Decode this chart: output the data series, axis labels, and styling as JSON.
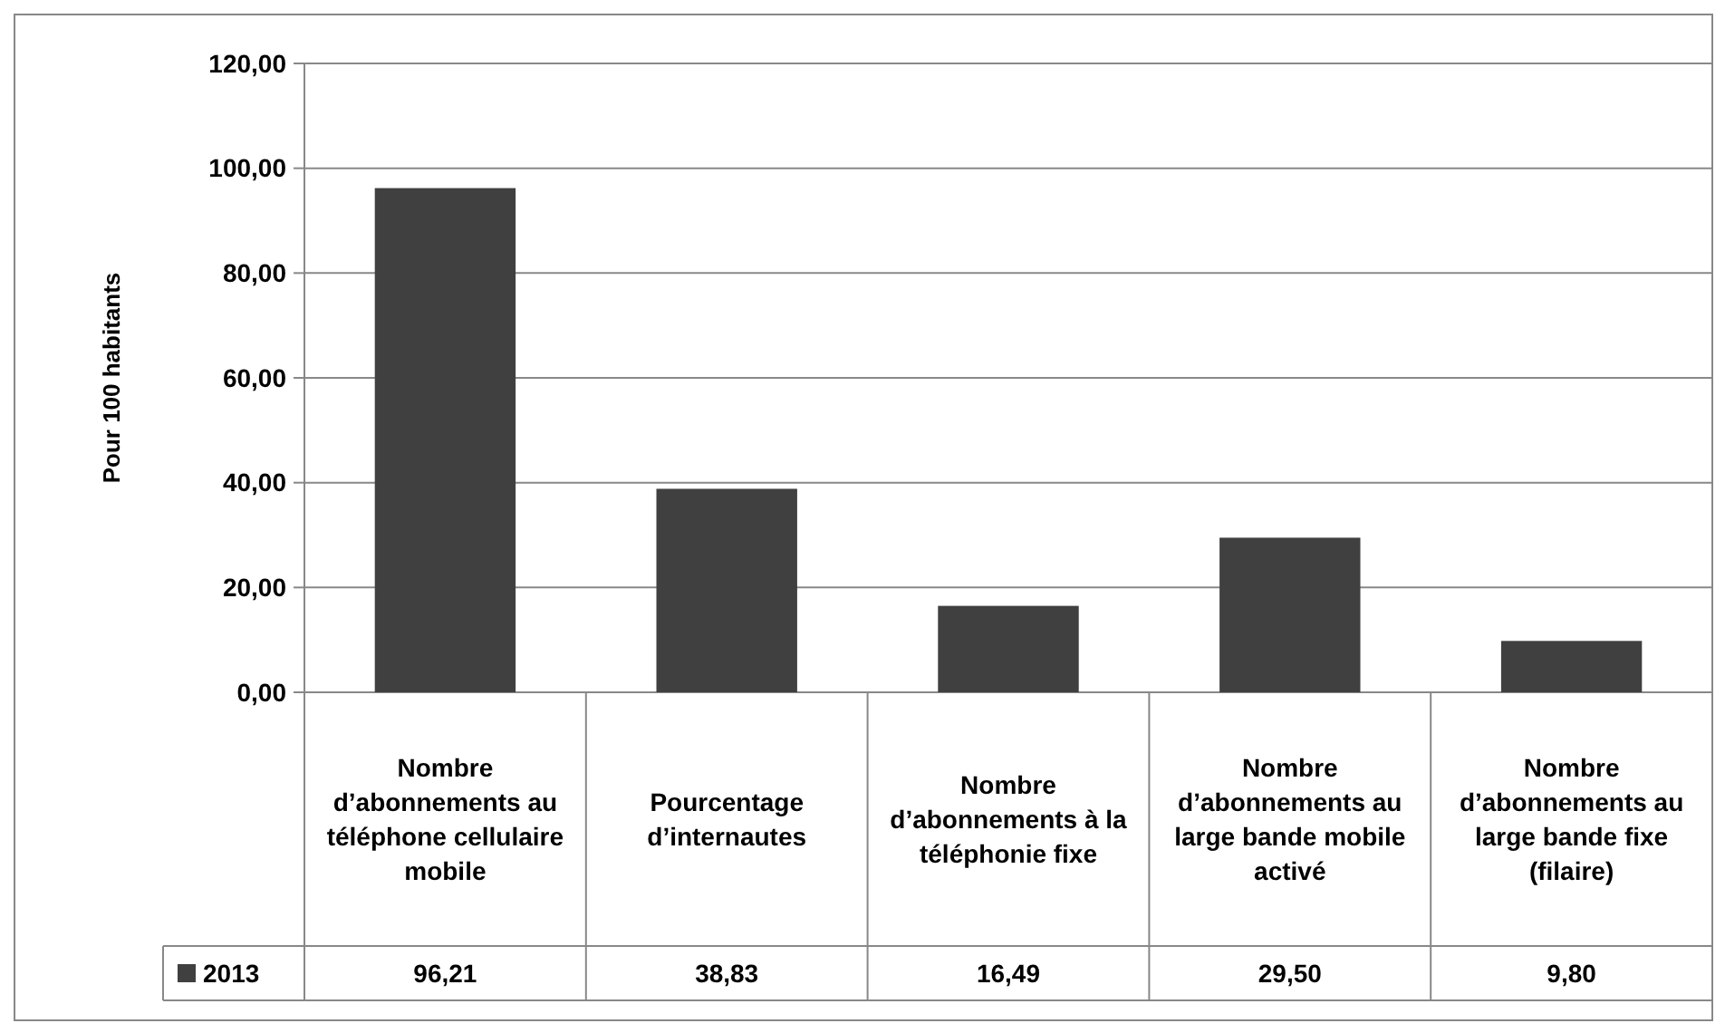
{
  "chart_data": {
    "type": "bar",
    "ylabel": "Pour 100 habitants",
    "categories": [
      "Nombre d’abonnements au téléphone cellulaire mobile",
      "Pourcentage d’internautes",
      "Nombre d’abonnements à la téléphonie fixe",
      "Nombre d’abonnements au large bande mobile activé",
      "Nombre d’abonnements au large bande fixe (filaire)"
    ],
    "series": [
      {
        "name": "2013",
        "color": "#404040",
        "values": [
          96.21,
          38.83,
          16.49,
          29.5,
          9.8
        ],
        "value_labels": [
          "96,21",
          "38,83",
          "16,49",
          "29,50",
          "9,80"
        ]
      }
    ],
    "ylim": [
      0,
      120
    ],
    "yticks": [
      {
        "value": 0,
        "label": "0,00"
      },
      {
        "value": 20,
        "label": "20,00"
      },
      {
        "value": 40,
        "label": "40,00"
      },
      {
        "value": 60,
        "label": "60,00"
      },
      {
        "value": 80,
        "label": "80,00"
      },
      {
        "value": 100,
        "label": "100,00"
      },
      {
        "value": 120,
        "label": "120,00"
      }
    ],
    "grid": "y",
    "legend": "bottom left"
  }
}
